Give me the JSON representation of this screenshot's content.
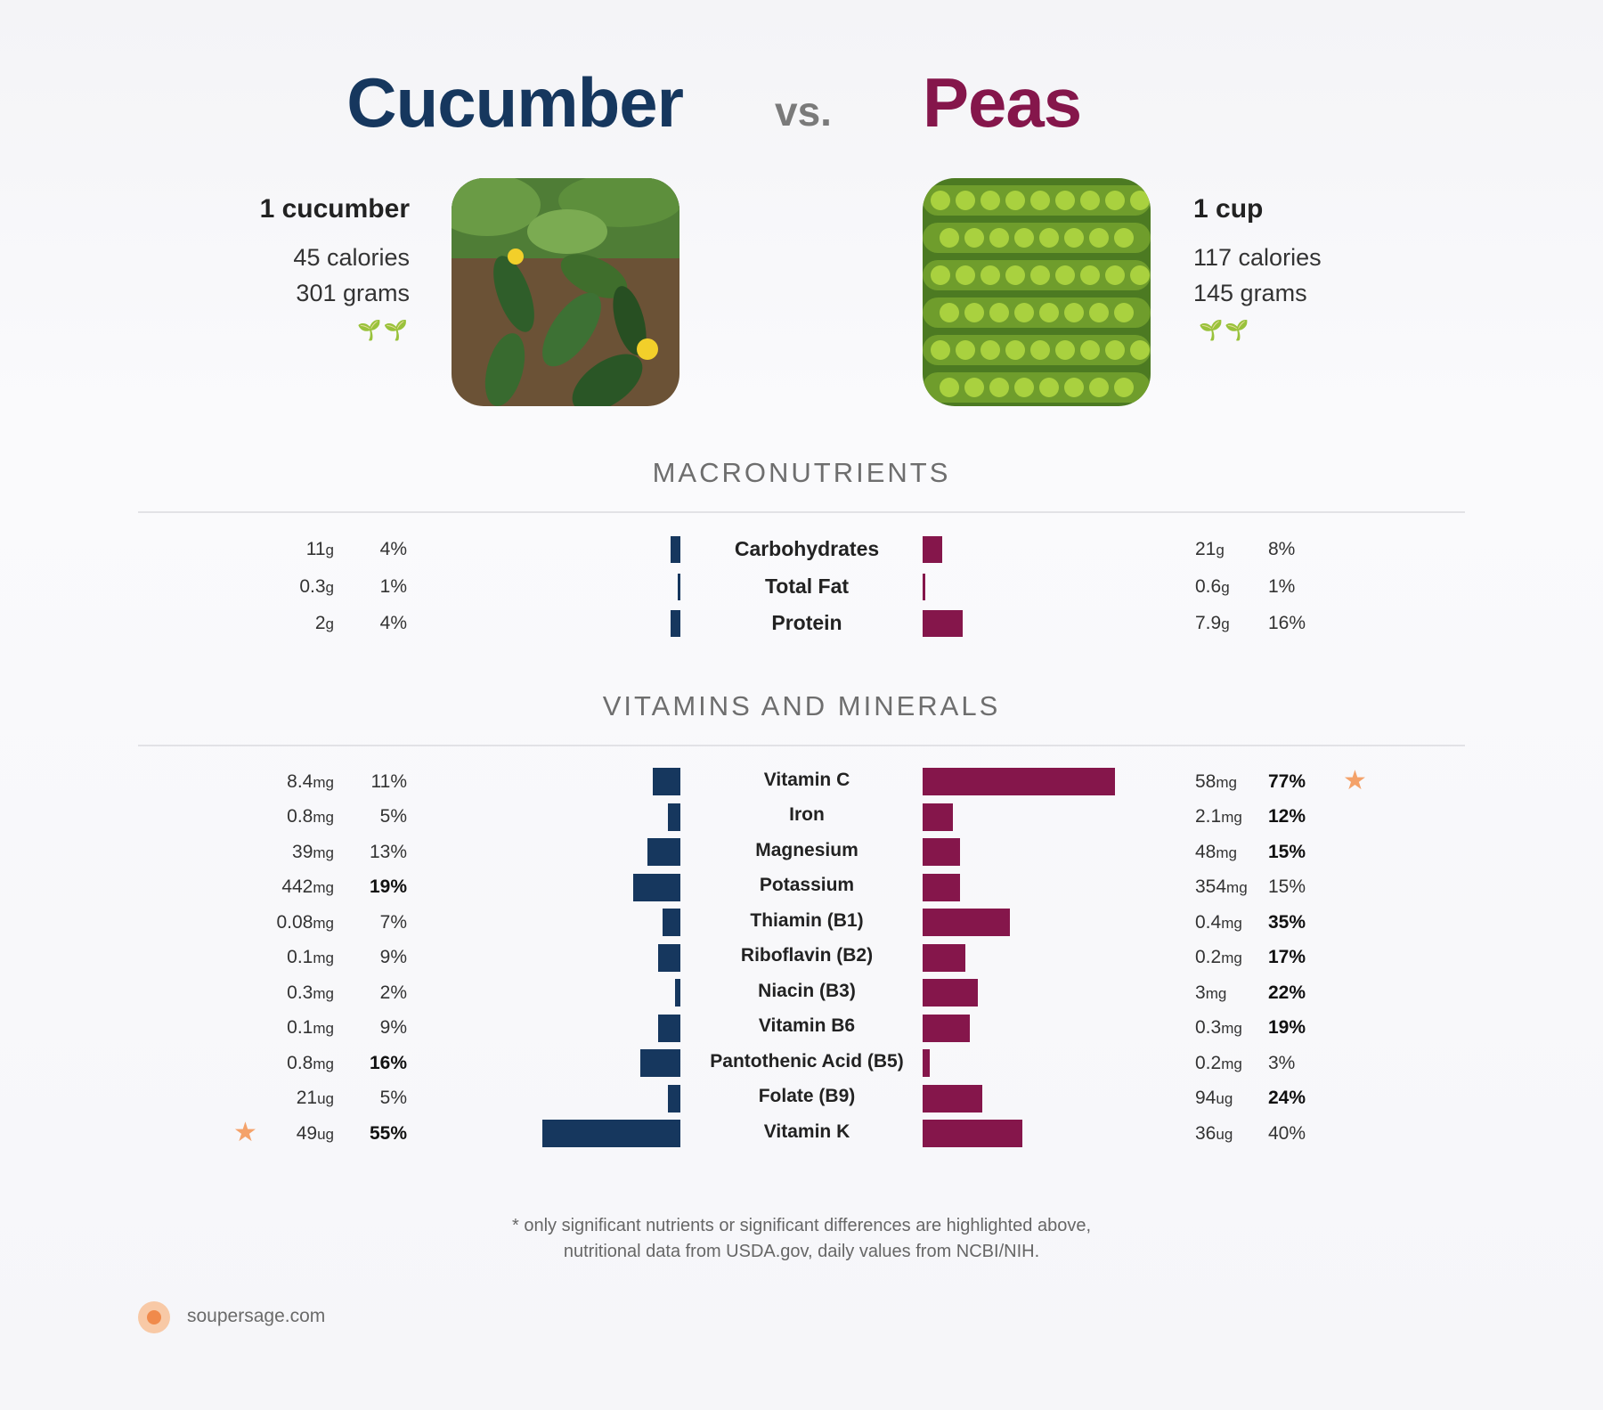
{
  "header": {
    "food_a": "Cucumber",
    "vs": "vs.",
    "food_b": "Peas",
    "color_a": "#16375e",
    "color_b": "#85164b"
  },
  "food_a": {
    "serving": "1 cucumber",
    "calories": "45 calories",
    "grams": "301 grams",
    "icon": "sprout-icon",
    "leaves": "🌱🌱"
  },
  "food_b": {
    "serving": "1 cup",
    "calories": "117 calories",
    "grams": "145 grams",
    "icon": "sprout-icon",
    "leaves": "🌱🌱"
  },
  "sections": {
    "macros": "MACRONUTRIENTS",
    "vitamins": "VITAMINS AND MINERALS"
  },
  "chart_data": [
    {
      "type": "bar",
      "orientation": "diverging-horizontal",
      "section": "MACRONUTRIENTS",
      "categories": [
        "Carbohydrates",
        "Total Fat",
        "Protein"
      ],
      "series": [
        {
          "name": "Cucumber",
          "amounts": [
            "11",
            "0.3",
            "2"
          ],
          "units": [
            "g",
            "g",
            "g"
          ],
          "values": [
            4,
            1,
            4
          ],
          "highlight": [
            false,
            false,
            false
          ],
          "star": [
            false,
            false,
            false
          ]
        },
        {
          "name": "Peas",
          "amounts": [
            "21",
            "0.6",
            "7.9"
          ],
          "units": [
            "g",
            "g",
            "g"
          ],
          "values": [
            8,
            1,
            16
          ],
          "highlight": [
            false,
            false,
            false
          ],
          "star": [
            false,
            false,
            false
          ]
        }
      ],
      "unit": "% daily value"
    },
    {
      "type": "bar",
      "orientation": "diverging-horizontal",
      "section": "VITAMINS AND MINERALS",
      "categories": [
        "Vitamin C",
        "Iron",
        "Magnesium",
        "Potassium",
        "Thiamin (B1)",
        "Riboflavin (B2)",
        "Niacin (B3)",
        "Vitamin B6",
        "Pantothenic Acid (B5)",
        "Folate (B9)",
        "Vitamin K"
      ],
      "series": [
        {
          "name": "Cucumber",
          "amounts": [
            "8.4",
            "0.8",
            "39",
            "442",
            "0.08",
            "0.1",
            "0.3",
            "0.1",
            "0.8",
            "21",
            "49"
          ],
          "units": [
            "mg",
            "mg",
            "mg",
            "mg",
            "mg",
            "mg",
            "mg",
            "mg",
            "mg",
            "ug",
            "ug"
          ],
          "values": [
            11,
            5,
            13,
            19,
            7,
            9,
            2,
            9,
            16,
            5,
            55
          ],
          "highlight": [
            false,
            false,
            false,
            true,
            false,
            false,
            false,
            false,
            true,
            false,
            true
          ],
          "star": [
            false,
            false,
            false,
            false,
            false,
            false,
            false,
            false,
            false,
            false,
            true
          ]
        },
        {
          "name": "Peas",
          "amounts": [
            "58",
            "2.1",
            "48",
            "354",
            "0.4",
            "0.2",
            "3",
            "0.3",
            "0.2",
            "94",
            "36"
          ],
          "units": [
            "mg",
            "mg",
            "mg",
            "mg",
            "mg",
            "mg",
            "mg",
            "mg",
            "mg",
            "ug",
            "ug"
          ],
          "values": [
            77,
            12,
            15,
            15,
            35,
            17,
            22,
            19,
            3,
            24,
            40
          ],
          "highlight": [
            true,
            true,
            true,
            false,
            true,
            true,
            true,
            true,
            false,
            true,
            false
          ],
          "star": [
            true,
            false,
            false,
            false,
            false,
            false,
            false,
            false,
            false,
            false,
            false
          ]
        }
      ],
      "unit": "% daily value"
    }
  ],
  "footer": {
    "line1": "* only significant nutrients or significant differences are highlighted above,",
    "line2": "nutritional data from USDA.gov, daily values from NCBI/NIH.",
    "brand": "soupersage.com"
  }
}
